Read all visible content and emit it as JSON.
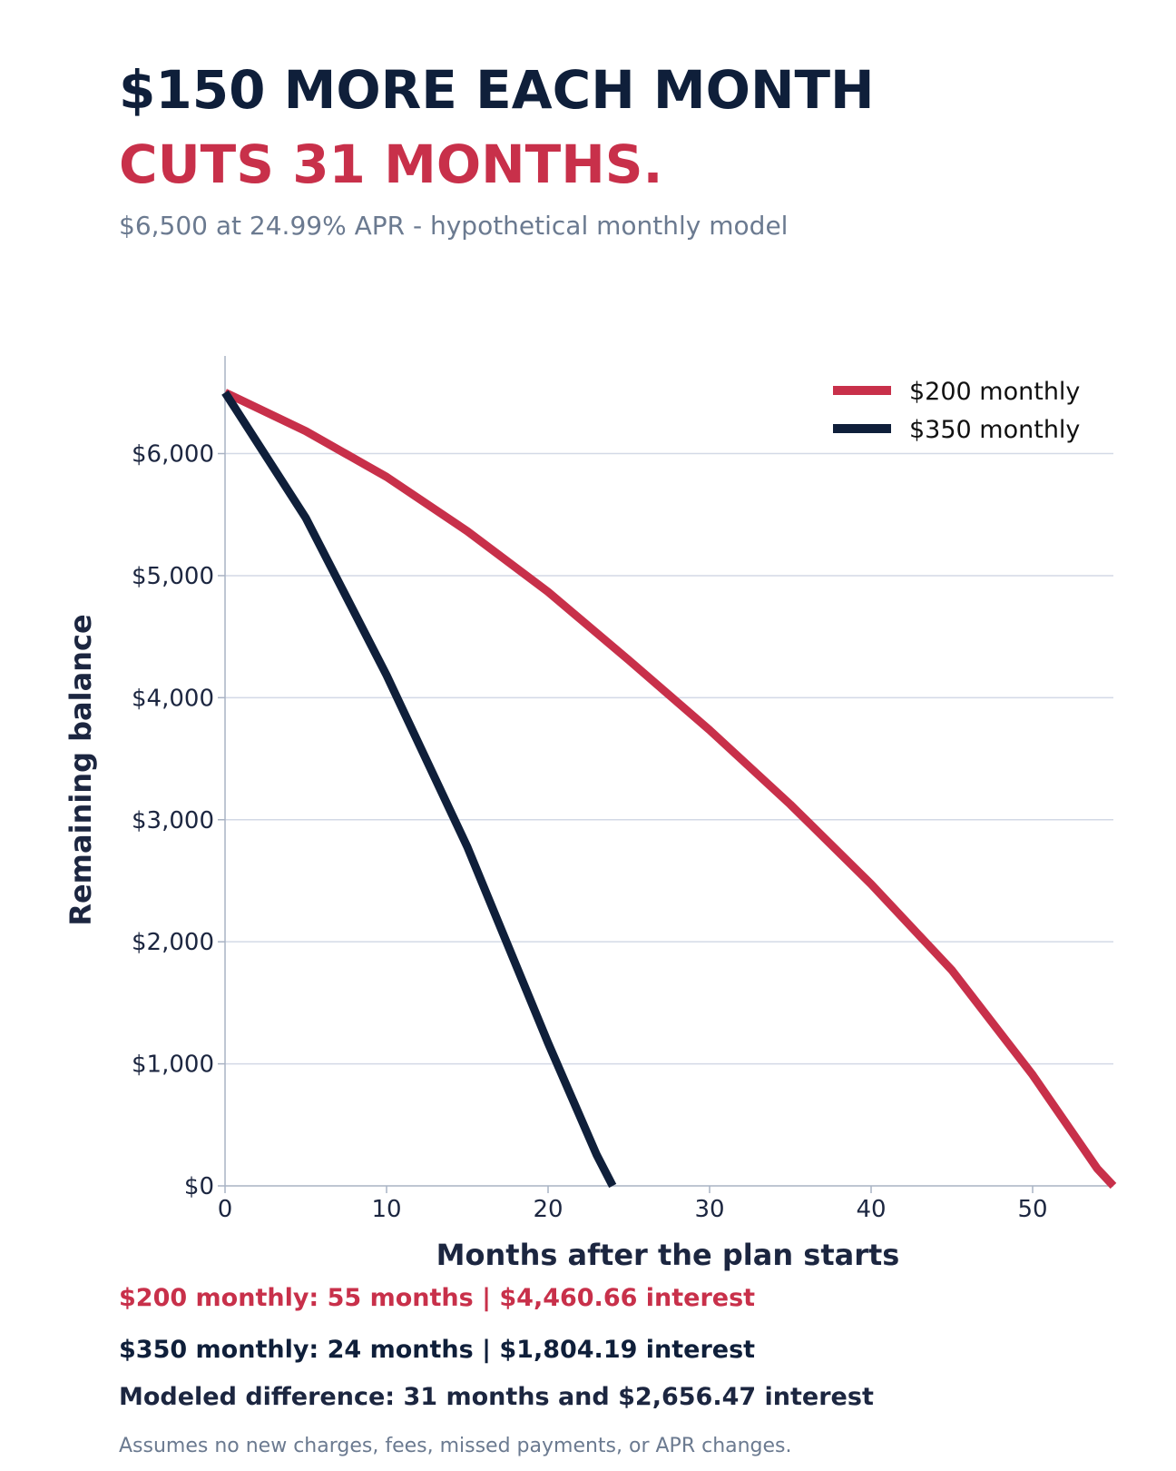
{
  "header": {
    "title_line1": "$150 MORE EACH MONTH",
    "title_line2": "CUTS 31 MONTHS.",
    "subtitle": "$6,500 at 24.99% APR - hypothetical monthly model"
  },
  "colors": {
    "title": "#0f1f3a",
    "accent": "#c8304a",
    "navy": "#0f1f3a",
    "muted": "#6b7a90",
    "grid": "#d3d9e6",
    "axis": "#a9b3c4"
  },
  "chart_data": {
    "type": "line",
    "title": "",
    "xlabel": "Months after the plan starts",
    "ylabel": "Remaining balance",
    "xlim": [
      0,
      55
    ],
    "ylim": [
      0,
      6800
    ],
    "xticks": [
      0,
      10,
      20,
      30,
      40,
      50
    ],
    "xtick_labels": [
      "0",
      "10",
      "20",
      "30",
      "40",
      "50"
    ],
    "yticks": [
      0,
      1000,
      2000,
      3000,
      4000,
      5000,
      6000
    ],
    "ytick_labels": [
      "$0",
      "$1,000",
      "$2,000",
      "$3,000",
      "$4,000",
      "$5,000",
      "$6,000"
    ],
    "grid": "horizontal",
    "legend_position": "top-right",
    "series": [
      {
        "name": "$200 monthly",
        "color": "#c8304a",
        "x": [
          0,
          5,
          10,
          15,
          20,
          25,
          30,
          35,
          40,
          45,
          50,
          54,
          55
        ],
        "y": [
          6500,
          6184,
          5809,
          5364,
          4867,
          4308,
          3735,
          3125,
          2472,
          1767,
          909,
          142,
          0
        ]
      },
      {
        "name": "$350 monthly",
        "color": "#0f1f3a",
        "x": [
          0,
          5,
          10,
          15,
          20,
          23,
          24
        ],
        "y": [
          6500,
          5473,
          4184,
          2777,
          1171,
          257,
          0
        ]
      }
    ]
  },
  "summary": {
    "line1": "$200 monthly: 55 months  |  $4,460.66 interest",
    "line2": "$350 monthly: 24 months  |  $1,804.19 interest",
    "line3": "Modeled difference: 31 months and $2,656.47 interest"
  },
  "footnote": "Assumes no new charges, fees, missed payments, or APR changes."
}
